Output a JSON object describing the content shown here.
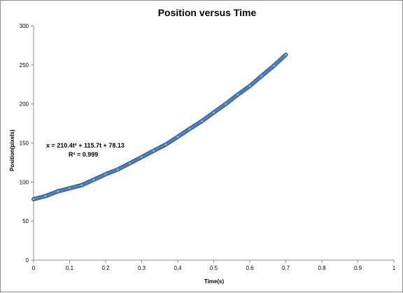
{
  "chart_data": {
    "type": "line",
    "title": "Position versus Time",
    "xlabel": "Time(s)",
    "ylabel": "Position(pixels)",
    "xlim": [
      0,
      1
    ],
    "ylim": [
      0,
      300
    ],
    "x_ticks": [
      "0",
      "0.1",
      "0.2",
      "0.3",
      "0.4",
      "0.5",
      "0.6",
      "0.7",
      "0.8",
      "0.9",
      "1"
    ],
    "y_ticks": [
      "0",
      "50",
      "100",
      "150",
      "200",
      "250",
      "300"
    ],
    "grid": false,
    "legend": "none",
    "series": [
      {
        "color": "#4f81bd",
        "x": [
          0,
          0.033,
          0.067,
          0.1,
          0.133,
          0.167,
          0.2,
          0.233,
          0.267,
          0.3,
          0.333,
          0.367,
          0.4,
          0.433,
          0.467,
          0.5,
          0.533,
          0.567,
          0.6,
          0.633,
          0.667,
          0.7
        ],
        "y": [
          78,
          82,
          88,
          92,
          96,
          103,
          110,
          116,
          124,
          132,
          140,
          148,
          158,
          168,
          178,
          189,
          200,
          212,
          223,
          236,
          249,
          263
        ]
      }
    ],
    "annotations": {
      "equation": "x = 210.4t² + 115.7t + 78.13",
      "r_squared": "R² = 0.999"
    }
  }
}
